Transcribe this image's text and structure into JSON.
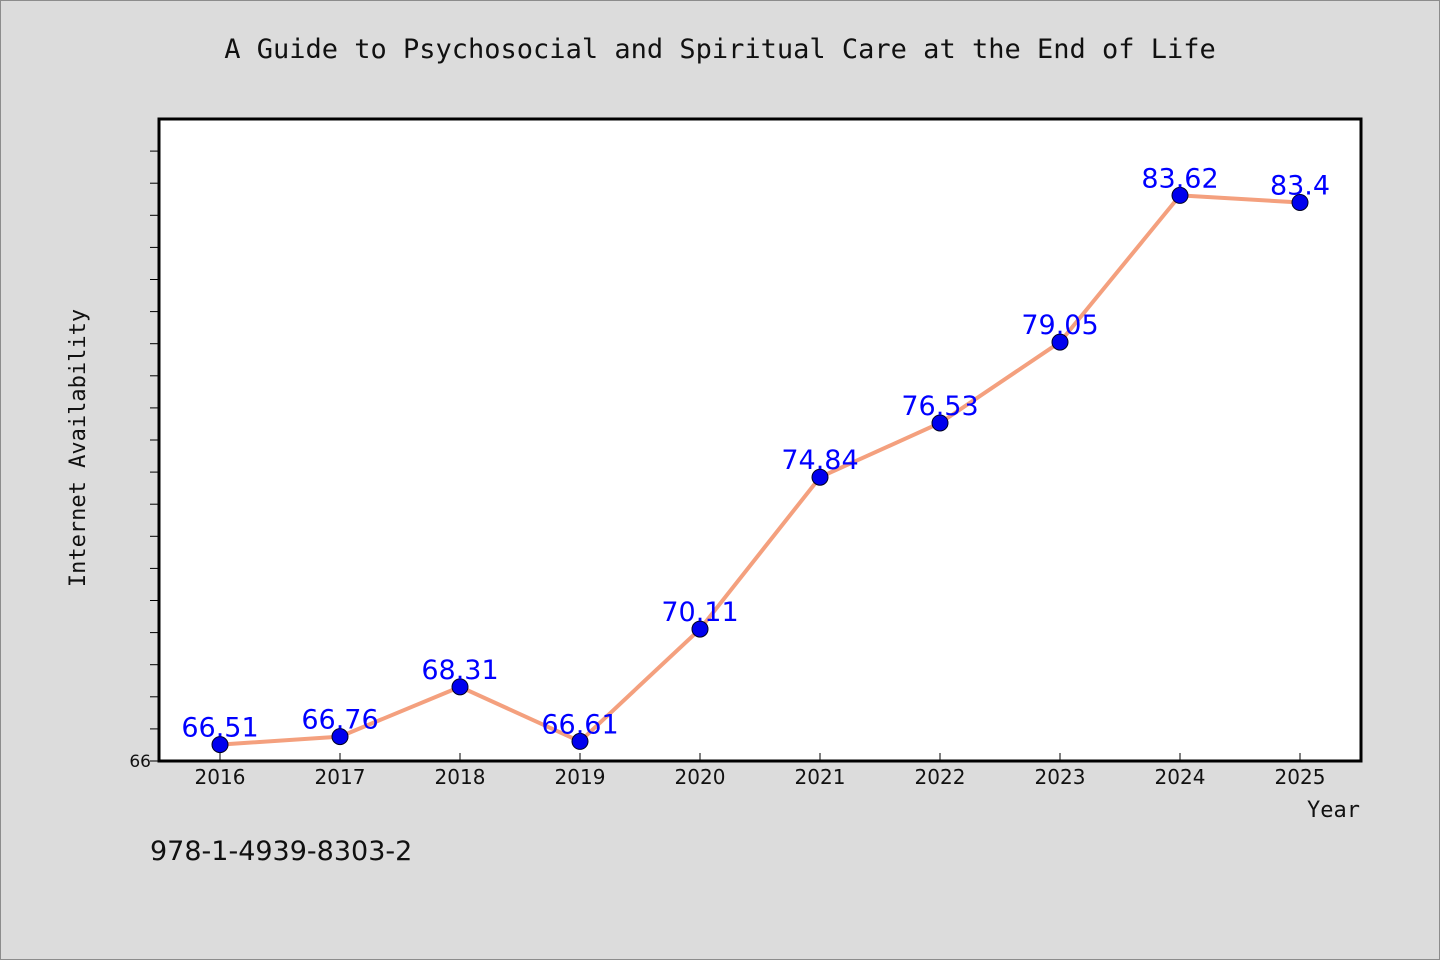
{
  "chart_data": {
    "type": "line",
    "title": "A Guide to Psychosocial and Spiritual Care at the End of Life",
    "xlabel": "Year",
    "ylabel": "Internet Availability",
    "categories": [
      "2016",
      "2017",
      "2018",
      "2019",
      "2020",
      "2021",
      "2022",
      "2023",
      "2024",
      "2025"
    ],
    "series": [
      {
        "values": [
          66.51,
          66.76,
          68.31,
          66.61,
          70.11,
          74.84,
          76.53,
          79.05,
          83.62,
          83.4
        ],
        "labels": [
          "66.51",
          "66.76",
          "68.31",
          "66.61",
          "70.11",
          "74.84",
          "76.53",
          "79.05",
          "83.62",
          "83.4"
        ]
      }
    ],
    "ylim": [
      66,
      86
    ],
    "y_tick_labels": [
      "66"
    ],
    "grid": false,
    "colors": {
      "line": "#f4a07e",
      "marker": "#0000ee",
      "label": "#0000ff"
    }
  },
  "footer": {
    "isbn": "978-1-4939-8303-2"
  }
}
